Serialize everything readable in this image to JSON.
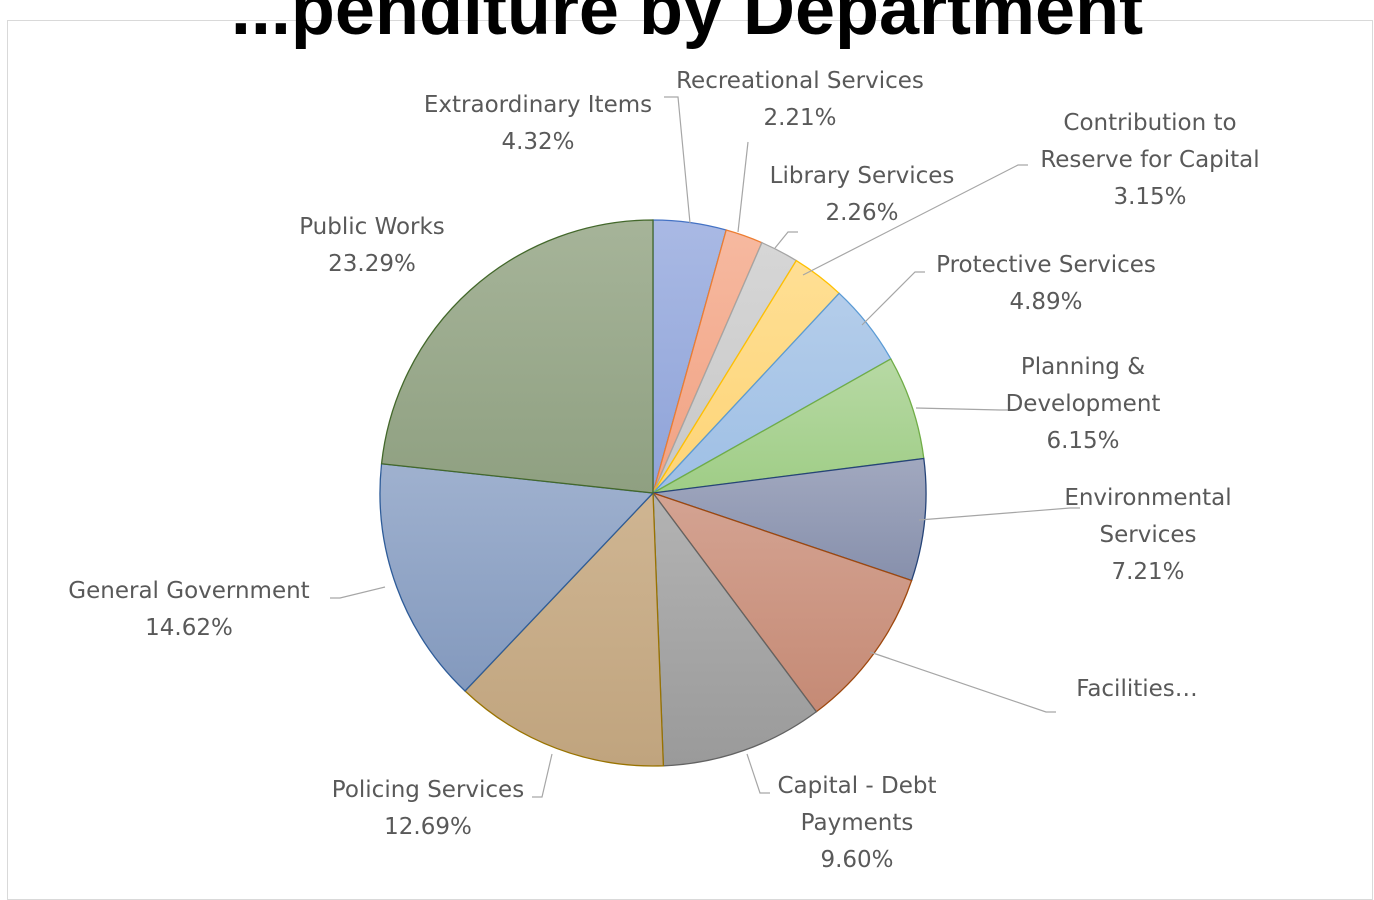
{
  "chart_data": {
    "type": "pie",
    "title": "...penditure by Department",
    "slices": [
      {
        "label": [
          "Extraordinary Items"
        ],
        "value_text": "4.32%",
        "value": 4.32,
        "fill_top": "#a9b9e4",
        "fill_bot": "#8fa3d8",
        "stroke": "#4472c4"
      },
      {
        "label": [
          "Recreational Services"
        ],
        "value_text": "2.21%",
        "value": 2.21,
        "fill_top": "#f6b9a0",
        "fill_bot": "#f1a283",
        "stroke": "#ed7d31"
      },
      {
        "label": [
          "Library Services"
        ],
        "value_text": "2.26%",
        "value": 2.26,
        "fill_top": "#d6d6d6",
        "fill_bot": "#c8c8c8",
        "stroke": "#a5a5a5"
      },
      {
        "label": [
          "Contribution to",
          "Reserve for Capital"
        ],
        "value_text": "3.15%",
        "value": 3.15,
        "fill_top": "#ffdf94",
        "fill_bot": "#fdd477",
        "stroke": "#ffc000"
      },
      {
        "label": [
          "Protective Services"
        ],
        "value_text": "4.89%",
        "value": 4.89,
        "fill_top": "#b4cdea",
        "fill_bot": "#9ebfe5",
        "stroke": "#5b9bd5"
      },
      {
        "label": [
          "Planning &",
          "Development"
        ],
        "value_text": "6.15%",
        "value": 6.15,
        "fill_top": "#b7d9a4",
        "fill_bot": "#9fcd86",
        "stroke": "#70ad47"
      },
      {
        "label": [
          "Environmental",
          "Services"
        ],
        "value_text": "7.21%",
        "value": 7.21,
        "fill_top": "#a1a8bf",
        "fill_bot": "#8790ac",
        "stroke": "#264478"
      },
      {
        "label": [
          "Facilities…"
        ],
        "value_text": "",
        "value": 9.6,
        "fill_top": "#d4a392",
        "fill_bot": "#c58a75",
        "stroke": "#9e480e"
      },
      {
        "label": [
          "Capital - Debt",
          "Payments"
        ],
        "value_text": "9.60%",
        "value": 9.6,
        "fill_top": "#b3b3b3",
        "fill_bot": "#9a9a9a",
        "stroke": "#636363"
      },
      {
        "label": [
          "Policing Services"
        ],
        "value_text": "12.69%",
        "value": 12.69,
        "fill_top": "#cfb592",
        "fill_bot": "#c0a47e",
        "stroke": "#997300"
      },
      {
        "label": [
          "General Government"
        ],
        "value_text": "14.62%",
        "value": 14.62,
        "fill_top": "#9fb1cf",
        "fill_bot": "#8399bd",
        "stroke": "#2e5c99"
      },
      {
        "label": [
          "Public Works"
        ],
        "value_text": "23.29%",
        "value": 23.29,
        "fill_top": "#a6b499",
        "fill_bot": "#8fa081",
        "stroke": "#43682b"
      }
    ]
  }
}
